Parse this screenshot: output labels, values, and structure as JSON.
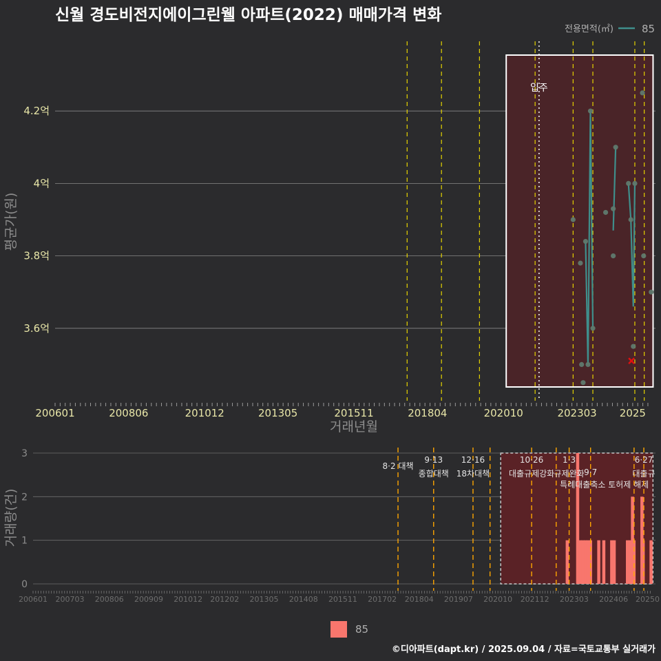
{
  "title": "신월 경도비전지에이그린웰 아파트(2022) 매매가격 변화",
  "legend": {
    "title": "전용면적(㎡)",
    "value": "85"
  },
  "bottom_legend_value": "85",
  "credit": "©디아파트(dapt.kr) / 2025.09.04 / 자료=국토교통부 실거래가",
  "movein_label": "입주",
  "colors": {
    "background": "#2b2b2d",
    "line": "#3f8f8c",
    "bar": "#f8766d",
    "highlight": "#4a2428",
    "policy_top": "#e6d400",
    "policy_bottom": "#ffa600"
  },
  "chart_data": [
    {
      "type": "line",
      "title": "신월 경도비전지에이그린웰 아파트(2022) 매매가격 변화",
      "xlabel": "거래년월",
      "ylabel": "평균가(원)",
      "x_ticks": [
        "200601",
        "200806",
        "201012",
        "201305",
        "201511",
        "201804",
        "202010",
        "202303",
        "2025"
      ],
      "y_ticks": [
        {
          "v": 3.6,
          "label": "3.6억"
        },
        {
          "v": 3.8,
          "label": "3.8억"
        },
        {
          "v": 4.0,
          "label": "4억"
        },
        {
          "v": 4.2,
          "label": "4.2억"
        }
      ],
      "xlim": [
        2006.0,
        2025.75
      ],
      "ylim": [
        3.4,
        4.4
      ],
      "movein": 2021.92,
      "highlight": [
        2020.84,
        2025.67
      ],
      "policy_lines": [
        2017.58,
        2018.71,
        2019.96,
        2021.79,
        2023.04,
        2023.69,
        2025.07,
        2025.38
      ],
      "series": [
        {
          "name": "85",
          "points": [
            {
              "x": 2023.04,
              "y": 3.9
            },
            {
              "x": 2023.28,
              "y": 3.78
            },
            {
              "x": 2023.32,
              "y": 3.5
            },
            {
              "x": 2023.37,
              "y": 3.45
            },
            {
              "x": 2023.45,
              "y": 3.84
            },
            {
              "x": 2023.53,
              "y": 3.5
            },
            {
              "x": 2023.61,
              "y": 4.2
            },
            {
              "x": 2023.69,
              "y": 3.6
            },
            {
              "x": 2024.11,
              "y": 3.92
            },
            {
              "x": 2024.36,
              "y": 3.93
            },
            {
              "x": 2024.36,
              "y": 3.8
            },
            {
              "x": 2024.44,
              "y": 4.1
            },
            {
              "x": 2024.86,
              "y": 4.0
            },
            {
              "x": 2024.94,
              "y": 3.9
            },
            {
              "x": 2025.02,
              "y": 3.55
            },
            {
              "x": 2025.07,
              "y": 4.0
            },
            {
              "x": 2025.32,
              "y": 4.25
            },
            {
              "x": 2025.36,
              "y": 3.8
            },
            {
              "x": 2025.61,
              "y": 3.7
            }
          ],
          "line_points": [
            {
              "x": 2023.45,
              "y": 3.84
            },
            {
              "x": 2023.53,
              "y": 3.5
            },
            {
              "x": 2023.61,
              "y": 4.2
            },
            {
              "x": 2023.69,
              "y": 3.6
            },
            {
              "x": 2024.36,
              "y": 3.87
            },
            {
              "x": 2024.44,
              "y": 4.1
            },
            {
              "x": 2024.86,
              "y": 4.0
            },
            {
              "x": 2024.94,
              "y": 3.9
            },
            {
              "x": 2025.02,
              "y": 3.66
            },
            {
              "x": 2025.07,
              "y": 4.0
            }
          ],
          "line_breaks_after": [
            3,
            5
          ]
        }
      ],
      "marker_x": {
        "x": 2024.96,
        "y": 3.51
      }
    },
    {
      "type": "bar",
      "ylabel": "거래량(건)",
      "x_ticks": [
        "200601",
        "200703",
        "200806",
        "200909",
        "201012",
        "201202",
        "201305",
        "201408",
        "201511",
        "201702",
        "201804",
        "201907",
        "202010",
        "202112",
        "202303",
        "202406",
        "20250"
      ],
      "y_ticks": [
        0,
        1,
        2,
        3
      ],
      "xlim": [
        2006.0,
        2025.75
      ],
      "ylim": [
        0,
        3
      ],
      "highlight": [
        2020.84,
        2025.67
      ],
      "policy_lines": [
        {
          "x": 2017.58,
          "label": "8·2 대책",
          "label2": ""
        },
        {
          "x": 2018.71,
          "label": "9·13",
          "label2": "종합대책"
        },
        {
          "x": 2019.96,
          "label": "12·16",
          "label2": "18차대책"
        },
        {
          "x": 2020.5,
          "label": "",
          "label2": ""
        },
        {
          "x": 2021.82,
          "label": "10·26",
          "label2": "대출규제강화"
        },
        {
          "x": 2022.6,
          "label": "",
          "label2": ""
        },
        {
          "x": 2023.01,
          "label": "1·3",
          "label2": "규제완화"
        },
        {
          "x": 2023.69,
          "label": "",
          "label2": "9·7",
          "label3": "특례대출축소 토허제 해제"
        },
        {
          "x": 2025.07,
          "label": "",
          "label2": ""
        },
        {
          "x": 2025.38,
          "label": "6·27",
          "label2": "대출규"
        }
      ],
      "bars": [
        {
          "x": 2022.95,
          "v": 1
        },
        {
          "x": 2023.28,
          "v": 3
        },
        {
          "x": 2023.37,
          "v": 1
        },
        {
          "x": 2023.45,
          "v": 1
        },
        {
          "x": 2023.53,
          "v": 1
        },
        {
          "x": 2023.61,
          "v": 1
        },
        {
          "x": 2023.69,
          "v": 1
        },
        {
          "x": 2023.95,
          "v": 1
        },
        {
          "x": 2024.11,
          "v": 1
        },
        {
          "x": 2024.36,
          "v": 1
        },
        {
          "x": 2024.44,
          "v": 1
        },
        {
          "x": 2024.86,
          "v": 1
        },
        {
          "x": 2024.94,
          "v": 1
        },
        {
          "x": 2025.02,
          "v": 2
        },
        {
          "x": 2025.07,
          "v": 1
        },
        {
          "x": 2025.32,
          "v": 2
        },
        {
          "x": 2025.36,
          "v": 1
        },
        {
          "x": 2025.61,
          "v": 1
        }
      ]
    }
  ]
}
